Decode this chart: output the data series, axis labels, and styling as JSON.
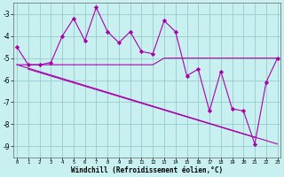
{
  "xlabel": "Windchill (Refroidissement éolien,°C)",
  "bg_color": "#c8f0f0",
  "line_color": "#aa00aa",
  "grid_color": "#99cccc",
  "x": [
    0,
    1,
    2,
    3,
    4,
    5,
    6,
    7,
    8,
    9,
    10,
    11,
    12,
    13,
    14,
    15,
    16,
    17,
    18,
    19,
    20,
    21,
    22,
    23
  ],
  "windchill": [
    -4.5,
    -5.3,
    -5.3,
    -5.2,
    -4.0,
    -3.2,
    -4.2,
    -2.7,
    -3.8,
    -4.3,
    -3.8,
    -4.7,
    -4.8,
    -3.3,
    -3.8,
    -5.8,
    -5.5,
    -7.4,
    -5.6,
    -7.3,
    -7.4,
    -8.9,
    -6.1,
    -5.0
  ],
  "line_flat": [
    -5.3,
    -5.3,
    -5.3,
    -5.3,
    -5.3,
    -5.3,
    -5.3,
    -5.3,
    -5.3,
    -5.3,
    -5.3,
    -5.3,
    -5.3,
    -5.0,
    -5.0,
    -5.0,
    -5.0,
    -5.0,
    -5.0,
    -5.0,
    -5.0,
    -5.0,
    -5.0,
    -5.0
  ],
  "line_trend_x": [
    0,
    23
  ],
  "line_trend_y": [
    -5.3,
    -8.9
  ],
  "line_trend2_x": [
    1,
    21
  ],
  "line_trend2_y": [
    -5.5,
    -8.6
  ],
  "ylim": [
    -9.5,
    -2.5
  ],
  "yticks": [
    -9,
    -8,
    -7,
    -6,
    -5,
    -4,
    -3
  ],
  "xlim": [
    -0.3,
    23.3
  ]
}
